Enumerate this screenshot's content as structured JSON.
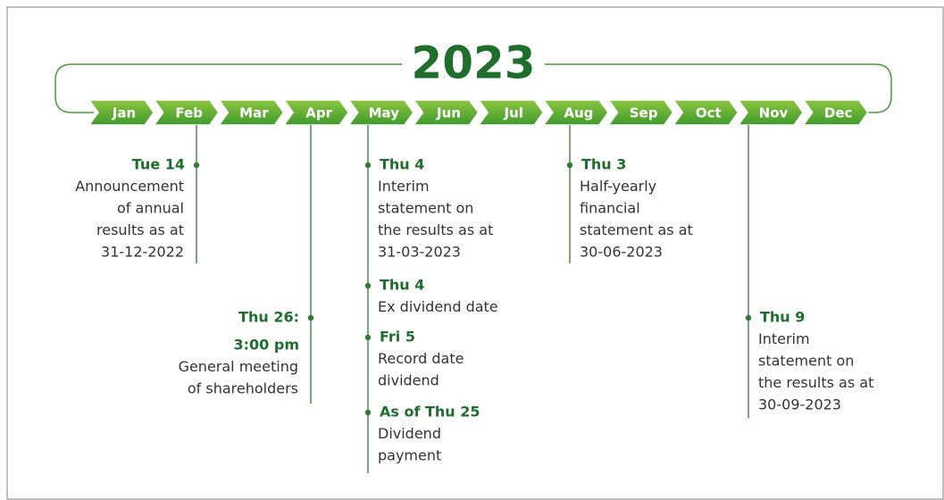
{
  "title": "2023",
  "months": [
    "Jan",
    "Feb",
    "Mar",
    "Apr",
    "May",
    "Jun",
    "Jul",
    "Aug",
    "Sep",
    "Oct",
    "Nov",
    "Dec"
  ],
  "timelines": [
    {
      "events": [
        {
          "date": [
            "Tue 14"
          ],
          "lines": [
            "Announcement",
            "of annual",
            "results as at",
            "31-12-2022"
          ]
        }
      ]
    },
    {
      "events": [
        {
          "date": [
            "Thu 26:",
            "3:00 pm"
          ],
          "lines": [
            "General meeting",
            "of shareholders"
          ]
        }
      ]
    },
    {
      "events": [
        {
          "date": [
            "Thu 4"
          ],
          "lines": [
            "Interim",
            "statement on",
            "the results as at",
            "31-03-2023"
          ]
        },
        {
          "date": [
            "Thu 4"
          ],
          "lines": [
            "Ex dividend date"
          ]
        },
        {
          "date": [
            "Fri 5"
          ],
          "lines": [
            "Record date",
            "dividend"
          ]
        },
        {
          "date": [
            "As of Thu 25"
          ],
          "lines": [
            "Dividend",
            "payment"
          ]
        }
      ]
    },
    {
      "events": [
        {
          "date": [
            "Thu 3"
          ],
          "lines": [
            "Half-yearly",
            "financial",
            "statement as at",
            "30-06-2023"
          ]
        }
      ]
    },
    {
      "events": [
        {
          "date": [
            "Thu 9"
          ],
          "lines": [
            "Interim",
            "statement on",
            "the results as at",
            "30-09-2023"
          ]
        }
      ]
    }
  ]
}
